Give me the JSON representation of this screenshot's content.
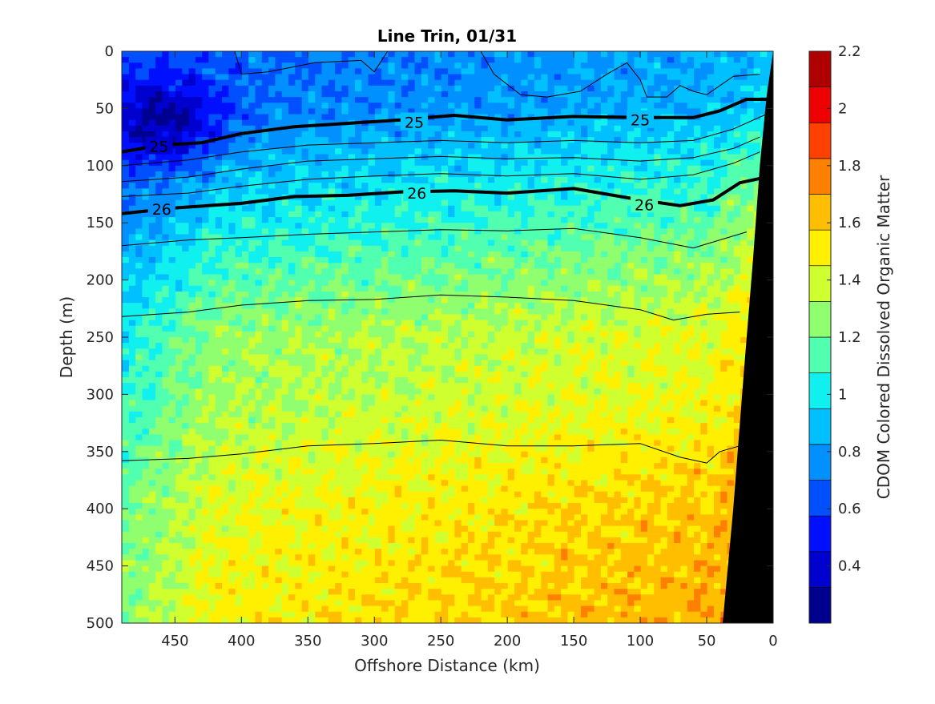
{
  "chart_data": {
    "type": "heatmap",
    "title": "Line Trin, 01/31",
    "xlabel": "Offshore Distance (km)",
    "ylabel": "Depth (m)",
    "colorbar_label": "CDOM Colored Dissolved Organic Matter",
    "xlim": [
      490,
      0
    ],
    "ylim": [
      0,
      500
    ],
    "x_reversed": true,
    "y_reversed": true,
    "x_ticks": [
      450,
      400,
      350,
      300,
      250,
      200,
      150,
      100,
      50,
      0
    ],
    "y_ticks": [
      0,
      50,
      100,
      150,
      200,
      250,
      300,
      350,
      400,
      450,
      500
    ],
    "colorbar": {
      "range": [
        0.2,
        2.2
      ],
      "ticks": [
        "0.4",
        "0.6",
        "0.8",
        "1",
        "1.2",
        "1.4",
        "1.6",
        "1.8",
        "2",
        "2.2"
      ],
      "tick_values": [
        0.4,
        0.6,
        0.8,
        1.0,
        1.2,
        1.4,
        1.6,
        1.8,
        2.0,
        2.2
      ],
      "levels": [
        0.2,
        0.3,
        0.4,
        0.5,
        0.6,
        0.7,
        0.8,
        0.9,
        1.0,
        1.1,
        1.2,
        1.3,
        1.4,
        1.5,
        1.6,
        1.7,
        1.8,
        1.9,
        2.0,
        2.1,
        2.2
      ],
      "colors": [
        "#00008f",
        "#0000cf",
        "#0010ff",
        "#0050ff",
        "#0090ff",
        "#00c0ff",
        "#10f0ef",
        "#50ffaf",
        "#90ff6f",
        "#d0ff2f",
        "#ffef00",
        "#ffbf00",
        "#ff8000",
        "#ff4000",
        "#ef0000",
        "#af0000"
      ]
    },
    "density_contours": [
      {
        "label": "25",
        "bold": true,
        "points": [
          [
            490,
            88
          ],
          [
            460,
            82
          ],
          [
            430,
            80
          ],
          [
            400,
            72
          ],
          [
            360,
            66
          ],
          [
            320,
            63
          ],
          [
            280,
            60
          ],
          [
            240,
            56
          ],
          [
            200,
            60
          ],
          [
            150,
            57
          ],
          [
            100,
            58
          ],
          [
            60,
            58
          ],
          [
            40,
            52
          ],
          [
            20,
            42
          ],
          [
            5,
            42
          ]
        ],
        "label_positions": [
          [
            462,
            83
          ],
          [
            270,
            62
          ],
          [
            100,
            60
          ]
        ]
      },
      {
        "label": "26",
        "bold": true,
        "points": [
          [
            490,
            142
          ],
          [
            450,
            137
          ],
          [
            400,
            133
          ],
          [
            360,
            127
          ],
          [
            320,
            126
          ],
          [
            280,
            123
          ],
          [
            240,
            122
          ],
          [
            200,
            124
          ],
          [
            150,
            120
          ],
          [
            100,
            130
          ],
          [
            70,
            135
          ],
          [
            45,
            130
          ],
          [
            25,
            115
          ],
          [
            5,
            110
          ]
        ],
        "label_positions": [
          [
            460,
            138
          ],
          [
            268,
            124
          ],
          [
            97,
            134
          ]
        ]
      },
      {
        "label": "",
        "bold": false,
        "points": [
          [
            490,
            100
          ],
          [
            440,
            95
          ],
          [
            400,
            88
          ],
          [
            350,
            82
          ],
          [
            300,
            80
          ],
          [
            250,
            78
          ],
          [
            200,
            80
          ],
          [
            150,
            78
          ],
          [
            100,
            80
          ],
          [
            60,
            78
          ],
          [
            30,
            68
          ],
          [
            5,
            55
          ]
        ],
        "label_positions": []
      },
      {
        "label": "",
        "bold": false,
        "points": [
          [
            490,
            114
          ],
          [
            440,
            110
          ],
          [
            400,
            103
          ],
          [
            350,
            96
          ],
          [
            300,
            94
          ],
          [
            250,
            92
          ],
          [
            200,
            94
          ],
          [
            150,
            93
          ],
          [
            100,
            96
          ],
          [
            60,
            93
          ],
          [
            30,
            85
          ],
          [
            10,
            75
          ]
        ],
        "label_positions": []
      },
      {
        "label": "",
        "bold": false,
        "points": [
          [
            490,
            127
          ],
          [
            440,
            124
          ],
          [
            400,
            118
          ],
          [
            350,
            112
          ],
          [
            300,
            109
          ],
          [
            250,
            107
          ],
          [
            200,
            109
          ],
          [
            150,
            107
          ],
          [
            100,
            112
          ],
          [
            60,
            108
          ],
          [
            30,
            98
          ],
          [
            10,
            88
          ]
        ],
        "label_positions": []
      },
      {
        "label": "",
        "bold": false,
        "points": [
          [
            490,
            170
          ],
          [
            440,
            165
          ],
          [
            400,
            163
          ],
          [
            350,
            160
          ],
          [
            300,
            158
          ],
          [
            250,
            156
          ],
          [
            200,
            157
          ],
          [
            150,
            155
          ],
          [
            100,
            163
          ],
          [
            60,
            172
          ],
          [
            40,
            165
          ],
          [
            20,
            158
          ]
        ],
        "label_positions": []
      },
      {
        "label": "",
        "bold": false,
        "points": [
          [
            490,
            232
          ],
          [
            440,
            228
          ],
          [
            400,
            222
          ],
          [
            350,
            218
          ],
          [
            300,
            217
          ],
          [
            250,
            213
          ],
          [
            200,
            215
          ],
          [
            150,
            218
          ],
          [
            100,
            226
          ],
          [
            75,
            235
          ],
          [
            50,
            230
          ],
          [
            25,
            228
          ]
        ],
        "label_positions": []
      },
      {
        "label": "",
        "bold": false,
        "points": [
          [
            490,
            358
          ],
          [
            440,
            356
          ],
          [
            400,
            352
          ],
          [
            350,
            345
          ],
          [
            300,
            343
          ],
          [
            250,
            340
          ],
          [
            200,
            345
          ],
          [
            150,
            345
          ],
          [
            100,
            343
          ],
          [
            70,
            355
          ],
          [
            50,
            360
          ],
          [
            40,
            350
          ],
          [
            25,
            345
          ]
        ],
        "label_positions": []
      },
      {
        "label": "",
        "bold": false,
        "points": [
          [
            405,
            0
          ],
          [
            400,
            20
          ],
          [
            380,
            18
          ],
          [
            345,
            10
          ],
          [
            310,
            8
          ],
          [
            300,
            18
          ],
          [
            290,
            0
          ]
        ],
        "label_positions": []
      },
      {
        "label": "",
        "bold": false,
        "points": [
          [
            220,
            0
          ],
          [
            210,
            20
          ],
          [
            190,
            38
          ],
          [
            170,
            40
          ],
          [
            145,
            35
          ],
          [
            125,
            20
          ],
          [
            110,
            10
          ],
          [
            100,
            25
          ],
          [
            95,
            40
          ],
          [
            80,
            40
          ],
          [
            70,
            30
          ],
          [
            60,
            35
          ],
          [
            50,
            38
          ],
          [
            30,
            22
          ],
          [
            10,
            20
          ]
        ],
        "label_positions": []
      }
    ],
    "bathymetry": {
      "color": "#000000",
      "points": [
        [
          0,
          0
        ],
        [
          5,
          40
        ],
        [
          10,
          100
        ],
        [
          15,
          180
        ],
        [
          22,
          280
        ],
        [
          30,
          400
        ],
        [
          38,
          500
        ],
        [
          0,
          500
        ]
      ]
    },
    "field_model": {
      "surface": {
        "offshore": 0.58,
        "nearshore": 0.95
      },
      "depth_trend": [
        [
          0,
          0.75
        ],
        [
          50,
          0.78
        ],
        [
          100,
          0.95
        ],
        [
          150,
          1.08
        ],
        [
          200,
          1.22
        ],
        [
          250,
          1.35
        ],
        [
          300,
          1.38
        ],
        [
          350,
          1.45
        ],
        [
          400,
          1.52
        ],
        [
          450,
          1.55
        ],
        [
          500,
          1.58
        ]
      ],
      "notes_hidden": false
    }
  }
}
